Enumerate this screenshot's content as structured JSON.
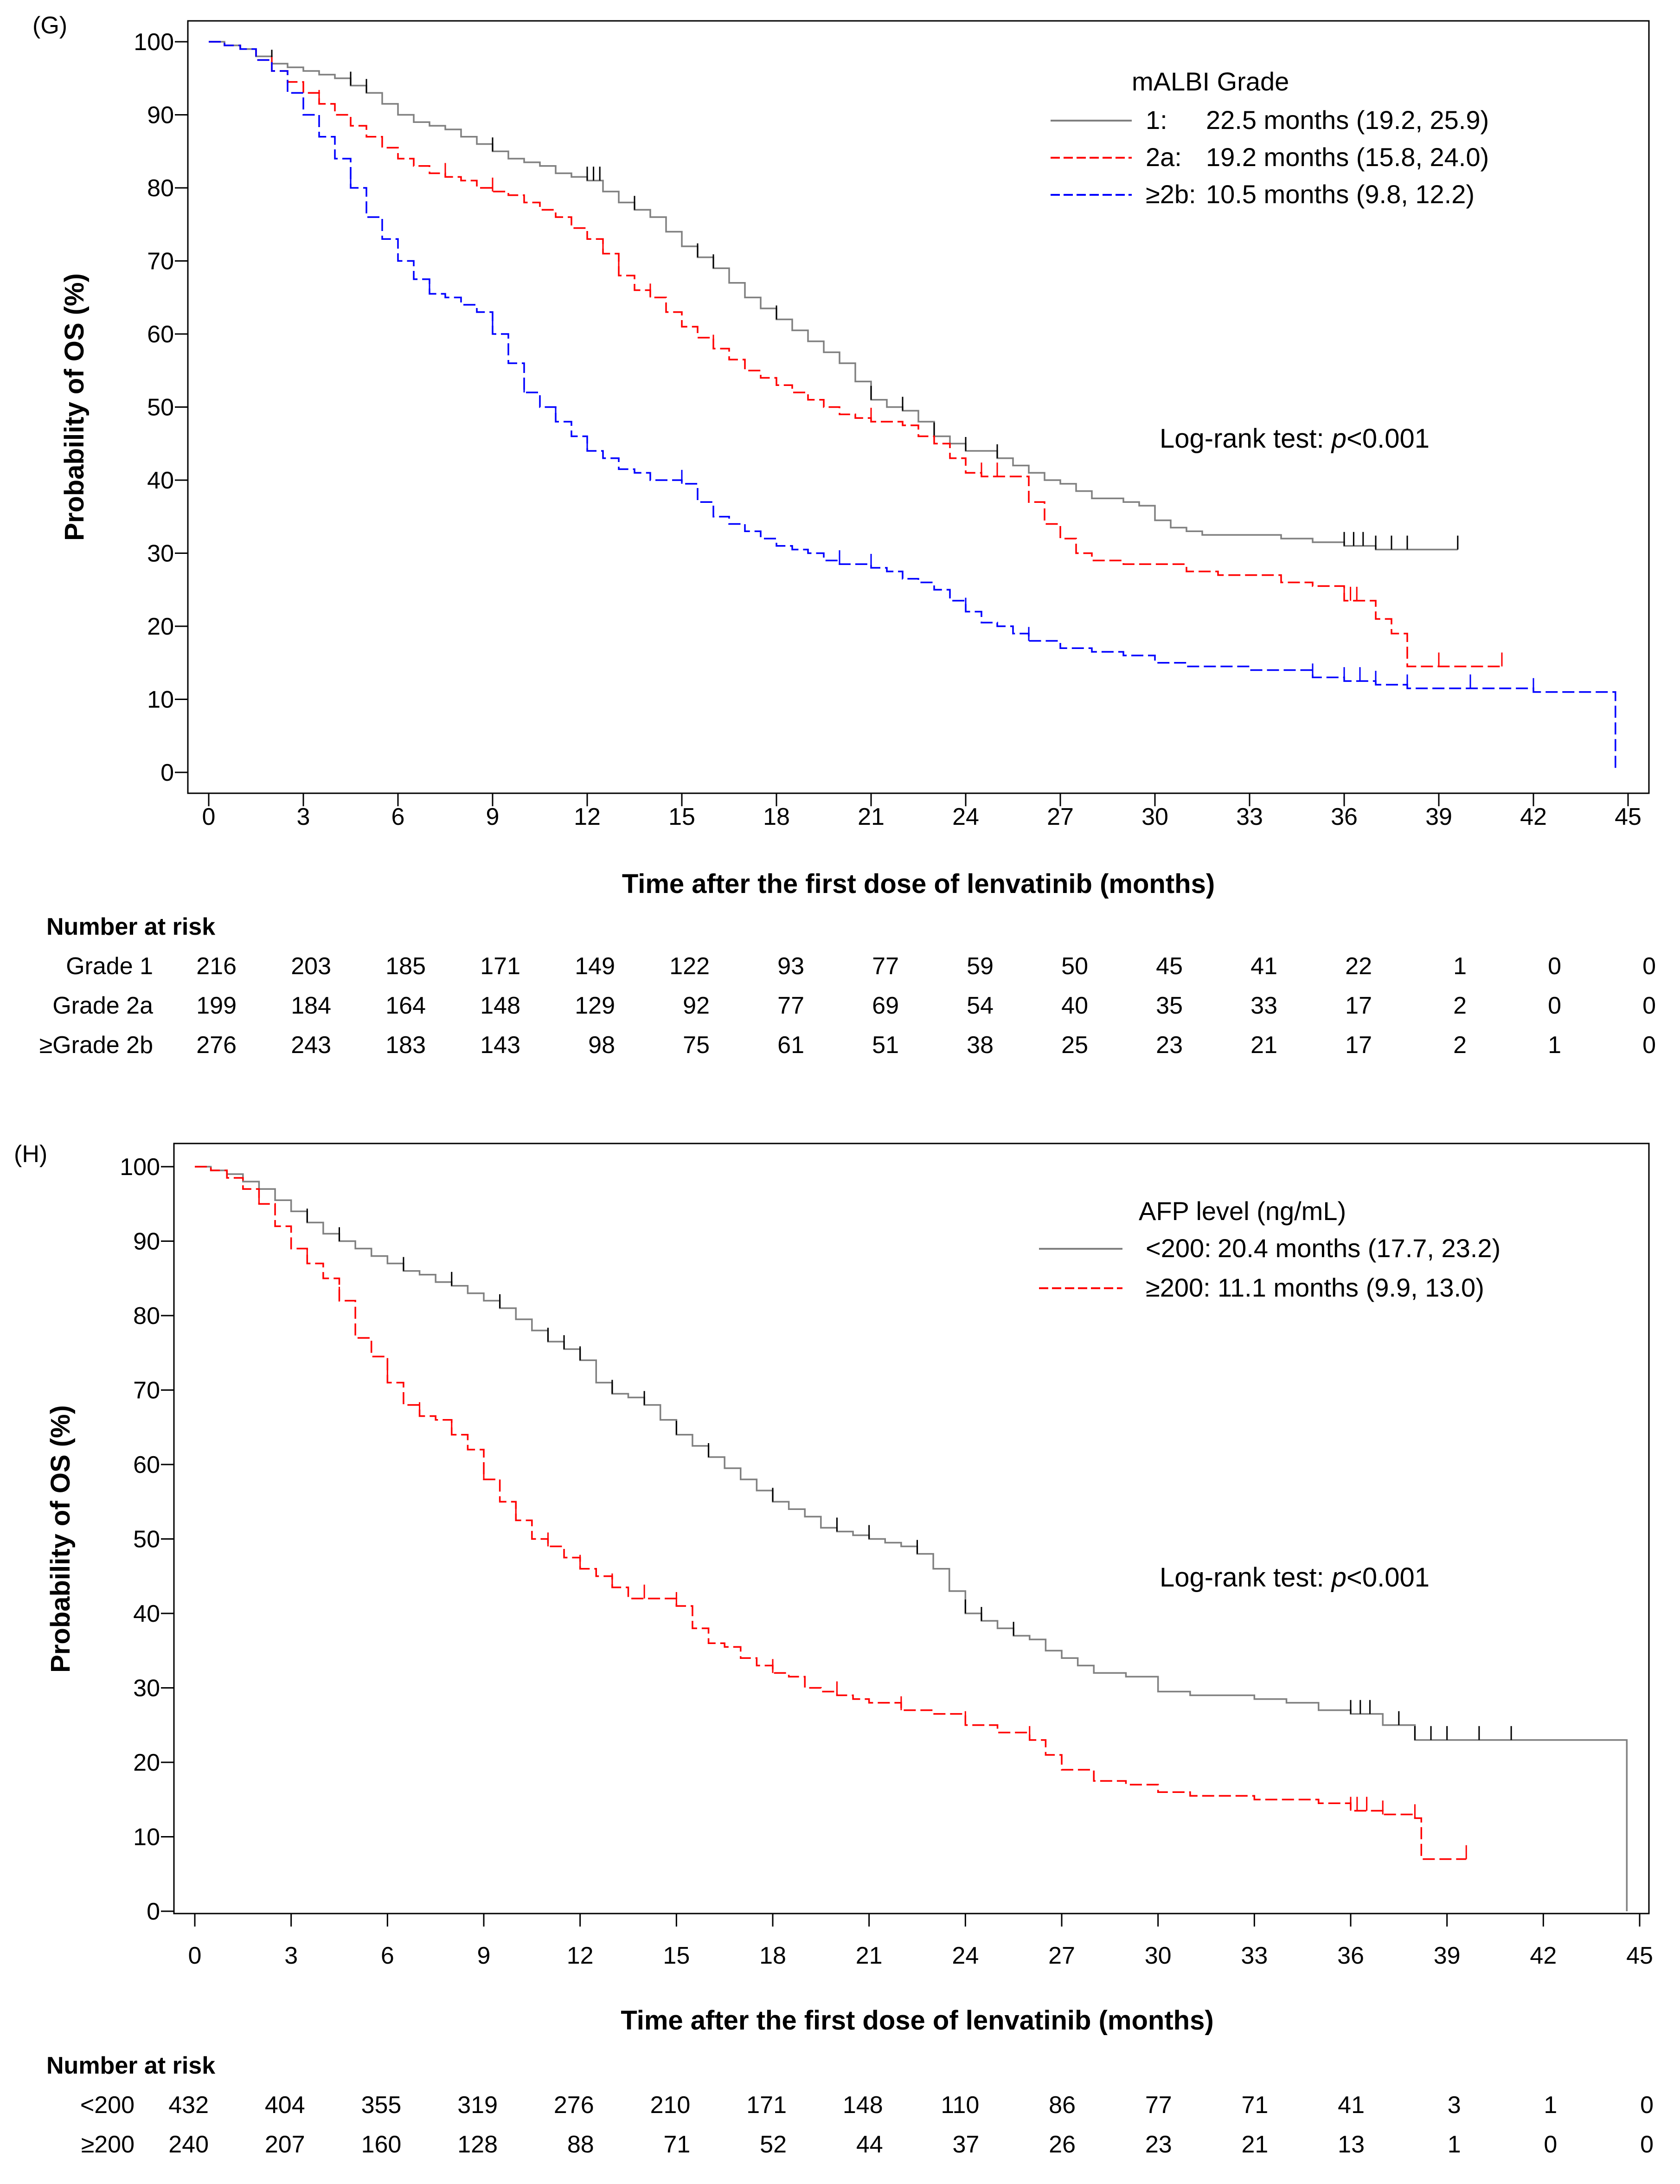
{
  "panels": [
    {
      "label": "(G)",
      "ylabel": "Probability of OS (%)",
      "xlabel": "Time after the first dose of lenvatinib (months)",
      "legend_title": "mALBI Grade",
      "annotation_prefix": "Log-rank test: ",
      "annotation_p": "p",
      "annotation_suffix": "<0.001",
      "risk_title": "Number at risk",
      "risk_times": [
        0,
        3,
        6,
        9,
        12,
        15,
        18,
        21,
        24,
        27,
        30,
        33,
        36,
        39,
        42,
        45
      ],
      "risk_rows": [
        {
          "label": "Grade 1",
          "values": [
            "216",
            "203",
            "185",
            "171",
            "149",
            "122",
            "93",
            "77",
            "59",
            "50",
            "45",
            "41",
            "22",
            "1",
            "0",
            "0"
          ]
        },
        {
          "label": "Grade 2a",
          "values": [
            "199",
            "184",
            "164",
            "148",
            "129",
            "92",
            "77",
            "69",
            "54",
            "40",
            "35",
            "33",
            "17",
            "2",
            "0",
            "0"
          ]
        },
        {
          "label": "≥Grade 2b",
          "values": [
            "276",
            "243",
            "183",
            "143",
            "98",
            "75",
            "61",
            "51",
            "38",
            "25",
            "23",
            "21",
            "17",
            "2",
            "1",
            "0"
          ]
        }
      ]
    },
    {
      "label": "(H)",
      "ylabel": "Probability of OS (%)",
      "xlabel": "Time after the first dose of lenvatinib (months)",
      "legend_title": "AFP level (ng/mL)",
      "annotation_prefix": "Log-rank test: ",
      "annotation_p": "p",
      "annotation_suffix": "<0.001",
      "risk_title": "Number at risk",
      "risk_times": [
        0,
        3,
        6,
        9,
        12,
        15,
        18,
        21,
        24,
        27,
        30,
        33,
        36,
        39,
        42,
        45
      ],
      "risk_rows": [
        {
          "label": "<200",
          "values": [
            "432",
            "404",
            "355",
            "319",
            "276",
            "210",
            "171",
            "148",
            "110",
            "86",
            "77",
            "71",
            "41",
            "3",
            "1",
            "0"
          ]
        },
        {
          "label": "≥200",
          "values": [
            "240",
            "207",
            "160",
            "128",
            "88",
            "71",
            "52",
            "44",
            "37",
            "26",
            "23",
            "21",
            "13",
            "1",
            "0",
            "0"
          ]
        }
      ]
    }
  ],
  "chart_data": [
    {
      "type": "line",
      "subtype": "kaplan-meier",
      "title": "(G)",
      "xlabel": "Time after the first dose of lenvatinib (months)",
      "ylabel": "Probability of OS (%)",
      "xlim": [
        0,
        45
      ],
      "ylim": [
        0,
        100
      ],
      "xticks": [
        0,
        3,
        6,
        9,
        12,
        15,
        18,
        21,
        24,
        27,
        30,
        33,
        36,
        39,
        42,
        45
      ],
      "yticks": [
        0,
        10,
        20,
        30,
        40,
        50,
        60,
        70,
        80,
        90,
        100
      ],
      "legend_title": "mALBI Grade",
      "legend_position": "top-right",
      "annotation": "Log-rank test: p<0.001",
      "series": [
        {
          "name": "1",
          "legend_key": "1:",
          "legend_value": "22.5 months (19.2, 25.9)",
          "color": "#808080",
          "dash": "solid",
          "x": [
            0,
            0.5,
            1,
            1.5,
            2,
            2.5,
            3,
            3.5,
            4,
            4.5,
            5,
            5.5,
            6,
            6.5,
            7,
            7.5,
            8,
            8.5,
            9,
            9.5,
            10,
            10.5,
            11,
            11.5,
            12,
            12.5,
            13,
            13.5,
            14,
            14.5,
            15,
            15.5,
            16,
            16.5,
            17,
            17.5,
            18,
            18.5,
            19,
            19.5,
            20,
            20.5,
            21,
            21.5,
            22,
            22.5,
            23,
            23.5,
            24,
            24.5,
            25,
            25.5,
            26,
            26.5,
            27,
            27.5,
            28,
            28.5,
            29,
            29.5,
            30,
            30.5,
            31,
            31.5,
            32,
            33,
            34,
            35,
            36,
            37,
            38,
            39,
            39.6
          ],
          "y": [
            100,
            99.5,
            99,
            98,
            97,
            96.5,
            96,
            95.5,
            95,
            94,
            93,
            91.5,
            90,
            89,
            88.5,
            88,
            87,
            86,
            85,
            84,
            83.5,
            83,
            82,
            81.5,
            81,
            79.5,
            78,
            77,
            76,
            74,
            72,
            70.5,
            69,
            67,
            65,
            63.5,
            62,
            60.5,
            59,
            57.5,
            56,
            53.5,
            51,
            50,
            49.5,
            48,
            46,
            45,
            44,
            44,
            43,
            42,
            41,
            40,
            39.5,
            38.5,
            37.5,
            37.5,
            37,
            36.5,
            34.5,
            33.5,
            33,
            32.5,
            32.5,
            32.5,
            32,
            31.5,
            31,
            30.5,
            30.5,
            30.5,
            30.5
          ],
          "censor_x": [
            2,
            4.5,
            5,
            9,
            12,
            12.2,
            12.4,
            13.5,
            15.5,
            16,
            18,
            21,
            22,
            23,
            24,
            25,
            36,
            36.3,
            36.6,
            37,
            37.5,
            38,
            39.6
          ]
        },
        {
          "name": "2a",
          "legend_key": "2a:",
          "legend_value": "19.2 months (15.8, 24.0)",
          "color": "#ff0000",
          "dash": "dashed",
          "x": [
            0,
            0.5,
            1,
            1.5,
            2,
            2.5,
            3,
            3.5,
            4,
            4.5,
            5,
            5.5,
            6,
            6.5,
            7,
            7.5,
            8,
            8.5,
            9,
            9.5,
            10,
            10.5,
            11,
            11.5,
            12,
            12.5,
            13,
            13.5,
            14,
            14.5,
            15,
            15.5,
            16,
            16.5,
            17,
            17.5,
            18,
            18.5,
            19,
            19.5,
            20,
            20.5,
            21,
            21.5,
            22,
            22.5,
            23,
            23.5,
            24,
            24.5,
            25,
            25.5,
            26,
            26.5,
            27,
            27.5,
            28,
            29,
            30,
            31,
            32,
            33,
            34,
            35,
            36,
            36.5,
            37,
            37.5,
            38,
            39,
            40,
            41
          ],
          "y": [
            100,
            99.5,
            99,
            97.5,
            96,
            94.5,
            93,
            91.5,
            90,
            88.5,
            87,
            85.5,
            84,
            83,
            82,
            81.5,
            81,
            80,
            79.5,
            79,
            78,
            77,
            76,
            74.5,
            73,
            71,
            68,
            66,
            65,
            63,
            61,
            59.5,
            58,
            56.5,
            55,
            54,
            53,
            52,
            51,
            50,
            49,
            48.5,
            48,
            48,
            47.5,
            46,
            45,
            43,
            41,
            40.5,
            40.5,
            40.5,
            37,
            34,
            32,
            30,
            29,
            28.5,
            28.5,
            27.5,
            27,
            27,
            26,
            25.5,
            23.5,
            23.5,
            21,
            19,
            14.5,
            14.5,
            14.5,
            14.5
          ],
          "censor_x": [
            2,
            3.5,
            7.5,
            9,
            12.5,
            13,
            14,
            16,
            21,
            24.5,
            25,
            36,
            36.2,
            36.4,
            39,
            41
          ]
        },
        {
          "name": "≥2b",
          "legend_key": "≥2b:",
          "legend_value": "10.5 months (9.8, 12.2)",
          "color": "#0000ff",
          "dash": "dashed",
          "x": [
            0,
            0.5,
            1,
            1.5,
            2,
            2.5,
            3,
            3.5,
            4,
            4.5,
            5,
            5.5,
            6,
            6.5,
            7,
            7.5,
            8,
            8.5,
            9,
            9.5,
            10,
            10.5,
            11,
            11.5,
            12,
            12.5,
            13,
            13.5,
            14,
            14.5,
            15,
            15.5,
            16,
            16.5,
            17,
            17.5,
            18,
            18.5,
            19,
            19.5,
            20,
            20.5,
            21,
            21.5,
            22,
            22.5,
            23,
            23.5,
            24,
            24.5,
            25,
            25.5,
            26,
            27,
            28,
            29,
            30,
            31,
            32,
            33,
            34,
            35,
            36,
            37,
            38,
            40,
            42,
            44,
            44.6,
            44.6
          ],
          "y": [
            100,
            99.5,
            99,
            97.5,
            96,
            93,
            90,
            87,
            84,
            80,
            76,
            73,
            70,
            67.5,
            65.5,
            65,
            64,
            63,
            60,
            56,
            52,
            50,
            48,
            46,
            44,
            43,
            41.5,
            41,
            40,
            40,
            39.5,
            37,
            35,
            34,
            33,
            32,
            31,
            30.5,
            30,
            29,
            28.5,
            28.5,
            28,
            27.5,
            26.5,
            26,
            25,
            23.5,
            22,
            20.5,
            20,
            19,
            18,
            17,
            16.5,
            16,
            15,
            14.5,
            14.5,
            14,
            14,
            13,
            12.5,
            12,
            11.5,
            11.5,
            11,
            11,
            11,
            0
          ],
          "censor_x": [
            4.5,
            7,
            9,
            10,
            11,
            12,
            15,
            20,
            21,
            24,
            26,
            35,
            36,
            36.5,
            37,
            38,
            40,
            42
          ]
        }
      ]
    },
    {
      "type": "line",
      "subtype": "kaplan-meier",
      "title": "(H)",
      "xlabel": "Time after the first dose of lenvatinib (months)",
      "ylabel": "Probability of OS (%)",
      "xlim": [
        0,
        45
      ],
      "ylim": [
        0,
        100
      ],
      "xticks": [
        0,
        3,
        6,
        9,
        12,
        15,
        18,
        21,
        24,
        27,
        30,
        33,
        36,
        39,
        42,
        45
      ],
      "yticks": [
        0,
        10,
        20,
        30,
        40,
        50,
        60,
        70,
        80,
        90,
        100
      ],
      "legend_title": "AFP level (ng/mL)",
      "legend_position": "top-right",
      "annotation": "Log-rank test: p<0.001",
      "series": [
        {
          "name": "<200",
          "legend_key": "<200:",
          "legend_value": "20.4 months (17.7, 23.2)",
          "color": "#808080",
          "dash": "solid",
          "x": [
            0,
            0.5,
            1,
            1.5,
            2,
            2.5,
            3,
            3.5,
            4,
            4.5,
            5,
            5.5,
            6,
            6.5,
            7,
            7.5,
            8,
            8.5,
            9,
            9.5,
            10,
            10.5,
            11,
            11.5,
            12,
            12.5,
            13,
            13.5,
            14,
            14.5,
            15,
            15.5,
            16,
            16.5,
            17,
            17.5,
            18,
            18.5,
            19,
            19.5,
            20,
            20.5,
            21,
            21.5,
            22,
            22.5,
            23,
            23.5,
            24,
            24.5,
            25,
            25.5,
            26,
            26.5,
            27,
            27.5,
            28,
            29,
            30,
            31,
            32,
            33,
            34,
            35,
            36,
            37,
            38,
            39,
            40,
            41,
            42,
            43,
            44,
            44.6,
            44.6
          ],
          "y": [
            100,
            99.5,
            99,
            98,
            97,
            95.5,
            94,
            92.5,
            91,
            90,
            89,
            88,
            87,
            86,
            85.5,
            84.5,
            84,
            83,
            82,
            81,
            79.5,
            78,
            76.5,
            75.5,
            74,
            71,
            69.5,
            69,
            68,
            66,
            64,
            62.5,
            61,
            59.5,
            58,
            56.5,
            55,
            54,
            53,
            51.5,
            51,
            50.5,
            50,
            49.5,
            49,
            48,
            46,
            43,
            40,
            39,
            38,
            37,
            36.5,
            35,
            34,
            33,
            32,
            31.5,
            29.5,
            29,
            29,
            28.5,
            28,
            27,
            26.5,
            25,
            23,
            23,
            23,
            23,
            23,
            23,
            23,
            23,
            0
          ],
          "censor_x": [
            3.5,
            4.5,
            6.5,
            8,
            9.5,
            11,
            11.5,
            12,
            13,
            14,
            15,
            16,
            18,
            20,
            21,
            22.5,
            24,
            24.5,
            25.5,
            36,
            36.3,
            36.6,
            37.5,
            38,
            38.5,
            39,
            40,
            41
          ]
        },
        {
          "name": "≥200",
          "legend_key": "≥200:",
          "legend_value": "11.1 months (9.9, 13.0)",
          "color": "#ff0000",
          "dash": "dashed",
          "x": [
            0,
            0.5,
            1,
            1.5,
            2,
            2.5,
            3,
            3.5,
            4,
            4.5,
            5,
            5.5,
            6,
            6.5,
            7,
            7.5,
            8,
            8.5,
            9,
            9.5,
            10,
            10.5,
            11,
            11.5,
            12,
            12.5,
            13,
            13.5,
            14,
            14.5,
            15,
            15.5,
            16,
            16.5,
            17,
            17.5,
            18,
            18.5,
            19,
            19.5,
            20,
            20.5,
            21,
            22,
            23,
            24,
            25,
            26,
            26.5,
            27,
            28,
            29,
            30,
            31,
            32,
            33,
            34,
            35,
            36,
            37,
            38,
            38.2,
            39,
            39.6
          ],
          "y": [
            100,
            99.5,
            98.5,
            97,
            95,
            92,
            89,
            87,
            85,
            82,
            77,
            74.5,
            71,
            68,
            66.5,
            66,
            64,
            62,
            58,
            55,
            52.5,
            50,
            49,
            47.5,
            46,
            45,
            43.5,
            42,
            42,
            42,
            41,
            38,
            36,
            35.5,
            34,
            33,
            32,
            31.5,
            30,
            29.5,
            29,
            28.5,
            28,
            27,
            26.5,
            25,
            24,
            23,
            21,
            19,
            17.5,
            17,
            16,
            15.5,
            15.5,
            15,
            15,
            14.5,
            13.5,
            13,
            12.5,
            7,
            7,
            7
          ],
          "censor_x": [
            2,
            3.5,
            4.5,
            6,
            7,
            8,
            9,
            10,
            11,
            12,
            13,
            14,
            15,
            18,
            20,
            22,
            24,
            26,
            36,
            36.2,
            36.5,
            37,
            38,
            39.6
          ]
        }
      ]
    }
  ]
}
